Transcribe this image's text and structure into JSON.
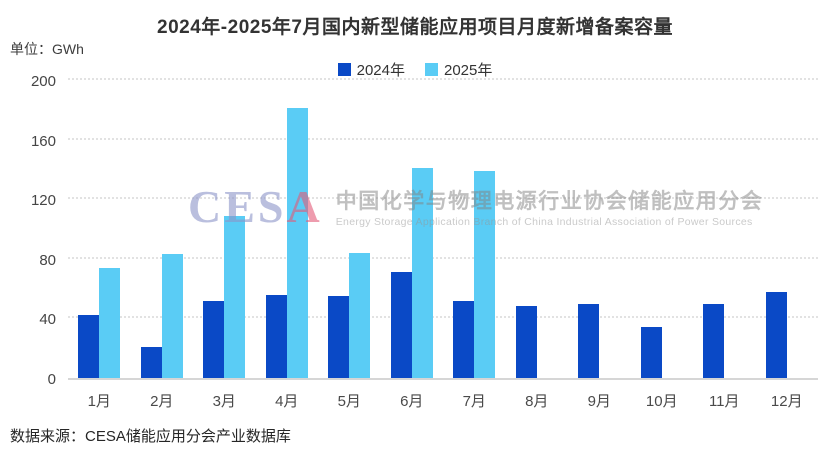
{
  "header": {
    "title": "2024年-2025年7月国内新型储能应用项目月度新增备案容量",
    "unit_label": "单位：GWh"
  },
  "legend": [
    {
      "label": "2024年",
      "color": "#0a49c6"
    },
    {
      "label": "2025年",
      "color": "#5accf5"
    }
  ],
  "chart_data": {
    "type": "bar",
    "title": "2024年-2025年7月国内新型储能应用项目月度新增备案容量",
    "ylabel": "GWh",
    "ylim": [
      0,
      200
    ],
    "yticks": [
      0,
      40,
      80,
      120,
      160,
      200
    ],
    "grid": "horizontal-dotted",
    "legend_position": "top-center",
    "categories": [
      "1月",
      "2月",
      "3月",
      "4月",
      "5月",
      "6月",
      "7月",
      "8月",
      "9月",
      "10月",
      "11月",
      "12月"
    ],
    "series": [
      {
        "name": "2024年",
        "color": "#0a49c6",
        "values": [
          42,
          21,
          52,
          56,
          55,
          71,
          52,
          48,
          50,
          34,
          50,
          58
        ]
      },
      {
        "name": "2025年",
        "color": "#5accf5",
        "values": [
          74,
          83,
          109,
          181,
          84,
          141,
          139,
          null,
          null,
          null,
          null,
          null
        ]
      }
    ]
  },
  "watermark": {
    "logo_text": "CESA",
    "logo_letter_color": "rgba(140,148,200,0.6)",
    "logo_accent_letter": "A",
    "logo_accent_color": "rgba(226,90,120,0.6)",
    "cn_text": "中国化学与物理电源行业协会储能应用分会",
    "en_text": "Energy Storage Application Branch of China Industrial Association of Power Sources"
  },
  "footer": {
    "source": "数据来源：CESA储能应用分会产业数据库"
  }
}
